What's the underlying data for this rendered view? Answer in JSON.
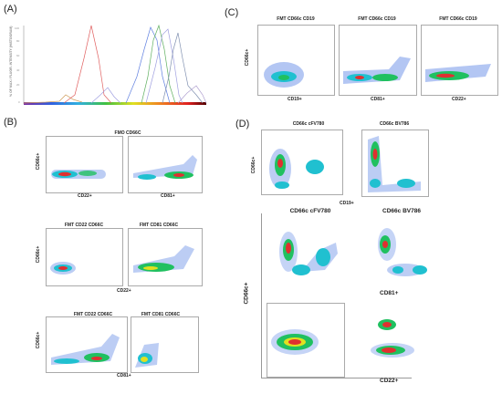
{
  "panels": {
    "A": {
      "label": "(A)",
      "ylabel": "% OF MAX / FLUOR. INTENSITY (HISTOGRAM)"
    },
    "B": {
      "label": "(B)",
      "plots": [
        {
          "title": "FMO CD66C",
          "xlabel": "CD22+",
          "ylabel": "CD66c+"
        },
        {
          "title": "",
          "xlabel": "CD81+",
          "ylabel": ""
        },
        {
          "title": "FMT CD22 CD66C",
          "xlabel": "",
          "ylabel": "CD66c+"
        },
        {
          "title": "FMT CD81 CD66C",
          "xlabel": "CD22+",
          "ylabel": ""
        },
        {
          "title": "FMT CD22 CD66C",
          "xlabel": "",
          "ylabel": "CD66c+"
        },
        {
          "title": "FMT CD81 CD66C",
          "xlabel": "CD81+",
          "ylabel": ""
        }
      ]
    },
    "C": {
      "label": "(C)",
      "plots": [
        {
          "title": "FMT CD66c CD19",
          "xlabel": "CD19+",
          "ylabel": "CD66c+"
        },
        {
          "title": "FMT CD66c CD19",
          "xlabel": "CD81+",
          "ylabel": ""
        },
        {
          "title": "FMT CD66c CD19",
          "xlabel": "CD22+",
          "ylabel": ""
        }
      ]
    },
    "D": {
      "label": "(D)",
      "row1": {
        "titles": [
          "CD66c cFV780",
          "CD66c BV786"
        ],
        "xlabel": "CD19+",
        "ylabel": "CD66c+"
      },
      "row2": {
        "titles": [
          "CD66c cFV780",
          "CD66c BV786"
        ],
        "xlabel": "CD81+"
      },
      "row3": {
        "xlabel": "CD22+"
      },
      "ylabel": "CD66c+"
    }
  },
  "colors": {
    "hist": [
      "#e06060",
      "#6080e0",
      "#60b060",
      "#a0a0e0",
      "#d0a060"
    ]
  }
}
